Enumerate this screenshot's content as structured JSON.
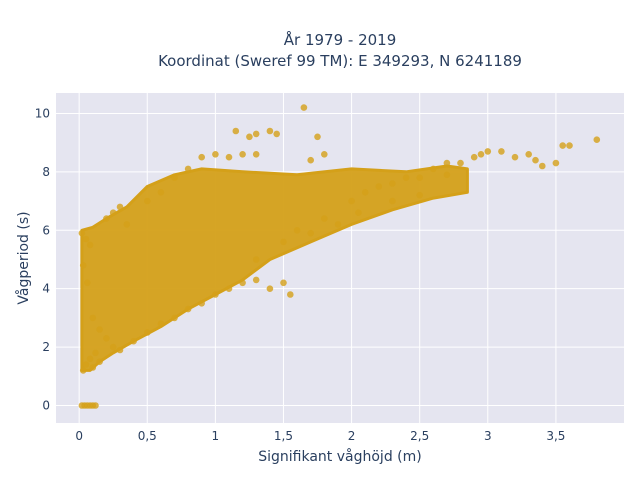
{
  "chart_data": {
    "type": "scatter",
    "title_line1": "År 1979 - 2019",
    "title_line2": "Koordinat (Sweref 99 TM): E 349293, N 6241189",
    "xlabel": "Signifikant våghöjd (m)",
    "ylabel": "Vågperiod (s)",
    "xlim": [
      -0.17,
      4.0
    ],
    "ylim": [
      -0.6,
      10.7
    ],
    "x_ticks": [
      0,
      0.5,
      1,
      1.5,
      2,
      2.5,
      3,
      3.5
    ],
    "x_tick_labels": [
      "0",
      "0,5",
      "1",
      "1,5",
      "2",
      "2,5",
      "3",
      "3,5"
    ],
    "y_ticks": [
      0,
      2,
      4,
      6,
      8,
      10
    ],
    "y_tick_labels": [
      "0",
      "2",
      "4",
      "6",
      "8",
      "10"
    ],
    "grid": true,
    "marker_color": "#d4a019",
    "background_color": "#e5e5f0",
    "points": [
      [
        0.02,
        0
      ],
      [
        0.04,
        0
      ],
      [
        0.06,
        0
      ],
      [
        0.08,
        0
      ],
      [
        0.1,
        0
      ],
      [
        0.12,
        0
      ],
      [
        0.03,
        1.2
      ],
      [
        0.05,
        1.4
      ],
      [
        0.08,
        1.6
      ],
      [
        0.1,
        1.3
      ],
      [
        0.12,
        1.8
      ],
      [
        0.15,
        1.5
      ],
      [
        0.02,
        5.9
      ],
      [
        0.05,
        5.7
      ],
      [
        0.08,
        5.5
      ],
      [
        0.03,
        4.8
      ],
      [
        0.06,
        4.2
      ],
      [
        0.2,
        6.4
      ],
      [
        0.25,
        6.6
      ],
      [
        0.3,
        6.8
      ],
      [
        0.35,
        6.2
      ],
      [
        0.5,
        7.0
      ],
      [
        0.6,
        7.3
      ],
      [
        0.7,
        7.8
      ],
      [
        0.8,
        8.1
      ],
      [
        0.9,
        8.5
      ],
      [
        1.0,
        8.6
      ],
      [
        1.1,
        8.5
      ],
      [
        1.2,
        8.6
      ],
      [
        1.3,
        8.6
      ],
      [
        1.15,
        9.4
      ],
      [
        1.25,
        9.2
      ],
      [
        1.3,
        9.3
      ],
      [
        1.4,
        9.4
      ],
      [
        1.45,
        9.3
      ],
      [
        1.65,
        10.2
      ],
      [
        1.75,
        9.2
      ],
      [
        1.7,
        8.4
      ],
      [
        1.8,
        8.6
      ],
      [
        0.4,
        2.2
      ],
      [
        0.5,
        2.5
      ],
      [
        0.6,
        2.8
      ],
      [
        0.7,
        3.0
      ],
      [
        0.8,
        3.3
      ],
      [
        0.9,
        3.5
      ],
      [
        1.0,
        3.8
      ],
      [
        1.1,
        4.0
      ],
      [
        1.2,
        4.2
      ],
      [
        1.3,
        4.3
      ],
      [
        1.4,
        4.0
      ],
      [
        1.5,
        4.2
      ],
      [
        1.55,
        3.8
      ],
      [
        1.3,
        5.0
      ],
      [
        1.5,
        5.6
      ],
      [
        1.7,
        5.9
      ],
      [
        1.9,
        6.2
      ],
      [
        2.0,
        7.0
      ],
      [
        2.1,
        7.3
      ],
      [
        2.2,
        7.5
      ],
      [
        2.3,
        7.6
      ],
      [
        2.4,
        7.8
      ],
      [
        2.5,
        7.8
      ],
      [
        2.6,
        8.1
      ],
      [
        2.7,
        8.3
      ],
      [
        2.8,
        8.3
      ],
      [
        2.9,
        8.5
      ],
      [
        2.95,
        8.6
      ],
      [
        3.0,
        8.7
      ],
      [
        3.1,
        8.7
      ],
      [
        3.2,
        8.5
      ],
      [
        3.3,
        8.6
      ],
      [
        3.35,
        8.4
      ],
      [
        3.4,
        8.2
      ],
      [
        3.5,
        8.3
      ],
      [
        3.55,
        8.9
      ],
      [
        3.6,
        8.9
      ],
      [
        3.8,
        9.1
      ],
      [
        2.7,
        7.9
      ],
      [
        2.5,
        7.2
      ],
      [
        2.3,
        7.0
      ],
      [
        2.05,
        6.6
      ],
      [
        1.8,
        6.4
      ],
      [
        1.6,
        6.0
      ],
      [
        0.1,
        3.0
      ],
      [
        0.15,
        2.6
      ],
      [
        0.2,
        2.3
      ],
      [
        0.25,
        2.0
      ],
      [
        0.3,
        1.9
      ]
    ]
  }
}
